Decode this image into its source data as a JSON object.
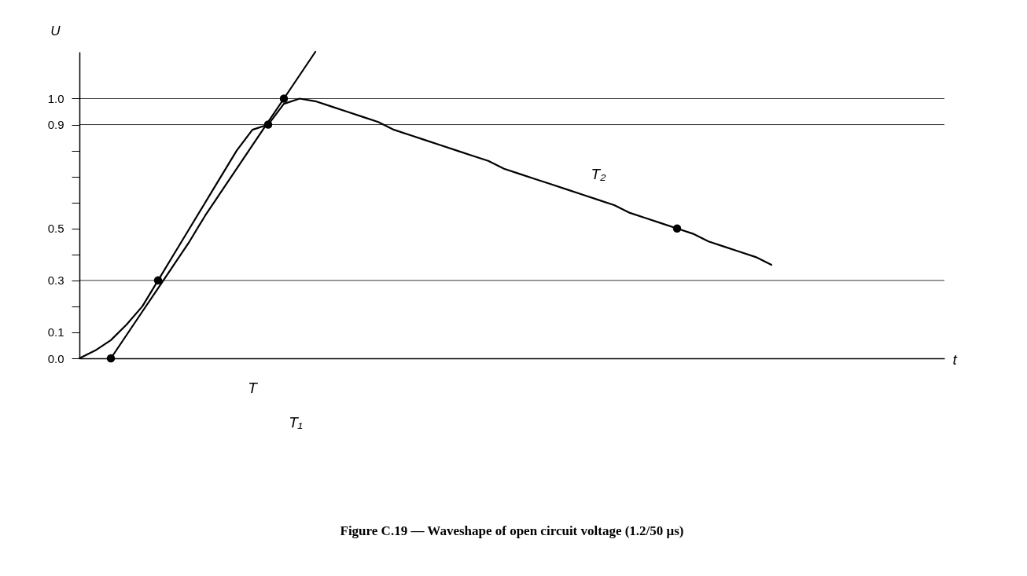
{
  "chart_data": {
    "type": "line",
    "title": "Figure C.19 — Waveshape of open circuit voltage (1.2/50 μs)",
    "ylabel": "U",
    "categories": [
      null,
      null,
      null,
      null,
      null,
      null,
      null,
      null,
      null,
      null,
      null,
      null,
      null,
      null,
      null,
      null,
      null,
      null,
      null,
      null,
      null,
      null,
      null,
      null,
      null,
      null,
      null,
      null,
      null,
      null,
      null,
      null,
      null,
      null,
      null,
      null,
      null,
      null,
      null,
      null,
      null,
      null,
      null,
      null,
      null
    ],
    "series": [
      {
        "type": "line",
        "color": "#000000",
        "values": [
          0,
          0.03,
          0.07,
          0.13,
          0.2,
          0.3,
          0.4,
          0.5,
          0.6,
          0.7,
          0.8,
          0.88,
          0.9,
          0.98,
          1.0,
          0.99,
          0.97,
          0.95,
          0.93,
          0.91,
          0.88,
          0.86,
          0.84,
          0.82,
          0.8,
          0.78,
          0.76,
          0.73,
          0.71,
          0.69,
          0.67,
          0.65,
          0.63,
          0.61,
          0.59,
          0.56,
          0.54,
          0.52,
          0.5,
          0.48,
          0.45,
          0.43,
          0.41,
          0.39,
          0.36
        ]
      },
      {
        "type": "line",
        "color": "#000000",
        "values": [
          null,
          null,
          0,
          0.09,
          0.18,
          0.27,
          0.36,
          0.45,
          0.55,
          0.64,
          0.73,
          0.82,
          0.91,
          1.0,
          1.09,
          1.18,
          null,
          null,
          null,
          null,
          null,
          null,
          null,
          null,
          null,
          null,
          null,
          null,
          null,
          null,
          null,
          null,
          null,
          null,
          null,
          null,
          null,
          null,
          null,
          null,
          null,
          null,
          null,
          null,
          null
        ]
      },
      {
        "type": "scatter",
        "color": "#000000",
        "values": [
          null,
          null,
          0,
          null,
          null,
          0.3,
          null,
          null,
          null,
          null,
          null,
          null,
          0.9,
          1.0,
          null,
          null,
          null,
          null,
          null,
          null,
          null,
          null,
          null,
          null,
          null,
          null,
          null,
          null,
          null,
          null,
          null,
          null,
          null,
          null,
          null,
          null,
          null,
          null,
          0.5,
          null,
          null,
          null,
          null,
          null,
          null
        ]
      }
    ],
    "ylim": [
      0,
      1.18
    ],
    "yticks": [
      {
        "value": 0,
        "label": "0.0"
      },
      0.1,
      {
        "value": 0.2,
        "label": null
      },
      0.3,
      {
        "value": 0.4,
        "label": null
      },
      0.5,
      {
        "value": 0.6,
        "label": null
      },
      {
        "value": 0.7,
        "label": null
      },
      {
        "value": 0.8,
        "label": null
      },
      0.9,
      {
        "value": 1,
        "label": "1.0"
      }
    ],
    "ref_lines": [
      {
        "axis": "y",
        "value": 0.3
      },
      {
        "axis": "y",
        "value": 0.9
      },
      {
        "axis": "y",
        "value": 1.0
      }
    ],
    "annotations": [
      "T",
      "T₁",
      "T₂",
      "t"
    ],
    "grid": false,
    "tick_labels": "y",
    "line_style": "solid"
  }
}
